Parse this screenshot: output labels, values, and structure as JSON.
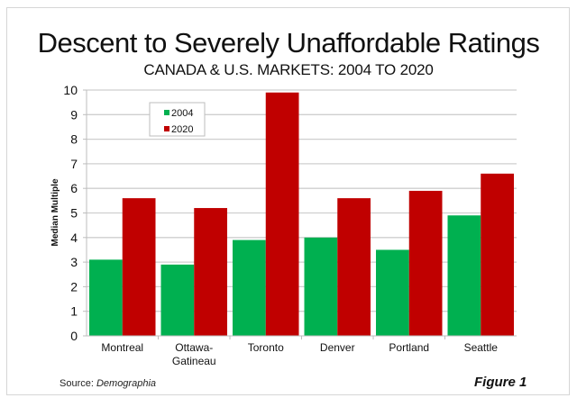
{
  "chart_data": {
    "type": "bar",
    "title": "Descent to Severely Unaffordable Ratings",
    "subtitle": "CANADA & U.S. MARKETS: 2004 TO 2020",
    "xlabel": "",
    "ylabel": "Median Multiple",
    "ylim": [
      0,
      10
    ],
    "yticks": [
      0,
      1,
      2,
      3,
      4,
      5,
      6,
      7,
      8,
      9,
      10
    ],
    "grid": true,
    "legend_position": "top-left",
    "categories": [
      "Montreal",
      "Ottawa-Gatineau",
      "Toronto",
      "Denver",
      "Portland",
      "Seattle"
    ],
    "category_labels": [
      [
        "Montreal"
      ],
      [
        "Ottawa-",
        "Gatineau"
      ],
      [
        "Toronto"
      ],
      [
        "Denver"
      ],
      [
        "Portland"
      ],
      [
        "Seattle"
      ]
    ],
    "series": [
      {
        "name": "2004",
        "color": "#00b050",
        "values": [
          3.1,
          2.9,
          3.9,
          4.0,
          3.5,
          4.9
        ]
      },
      {
        "name": "2020",
        "color": "#c00000",
        "values": [
          5.6,
          5.2,
          9.9,
          5.6,
          5.9,
          6.6
        ]
      }
    ]
  },
  "footer": {
    "source_prefix": "Source: ",
    "source_name": "Demographia",
    "figure_label": "Figure 1"
  }
}
